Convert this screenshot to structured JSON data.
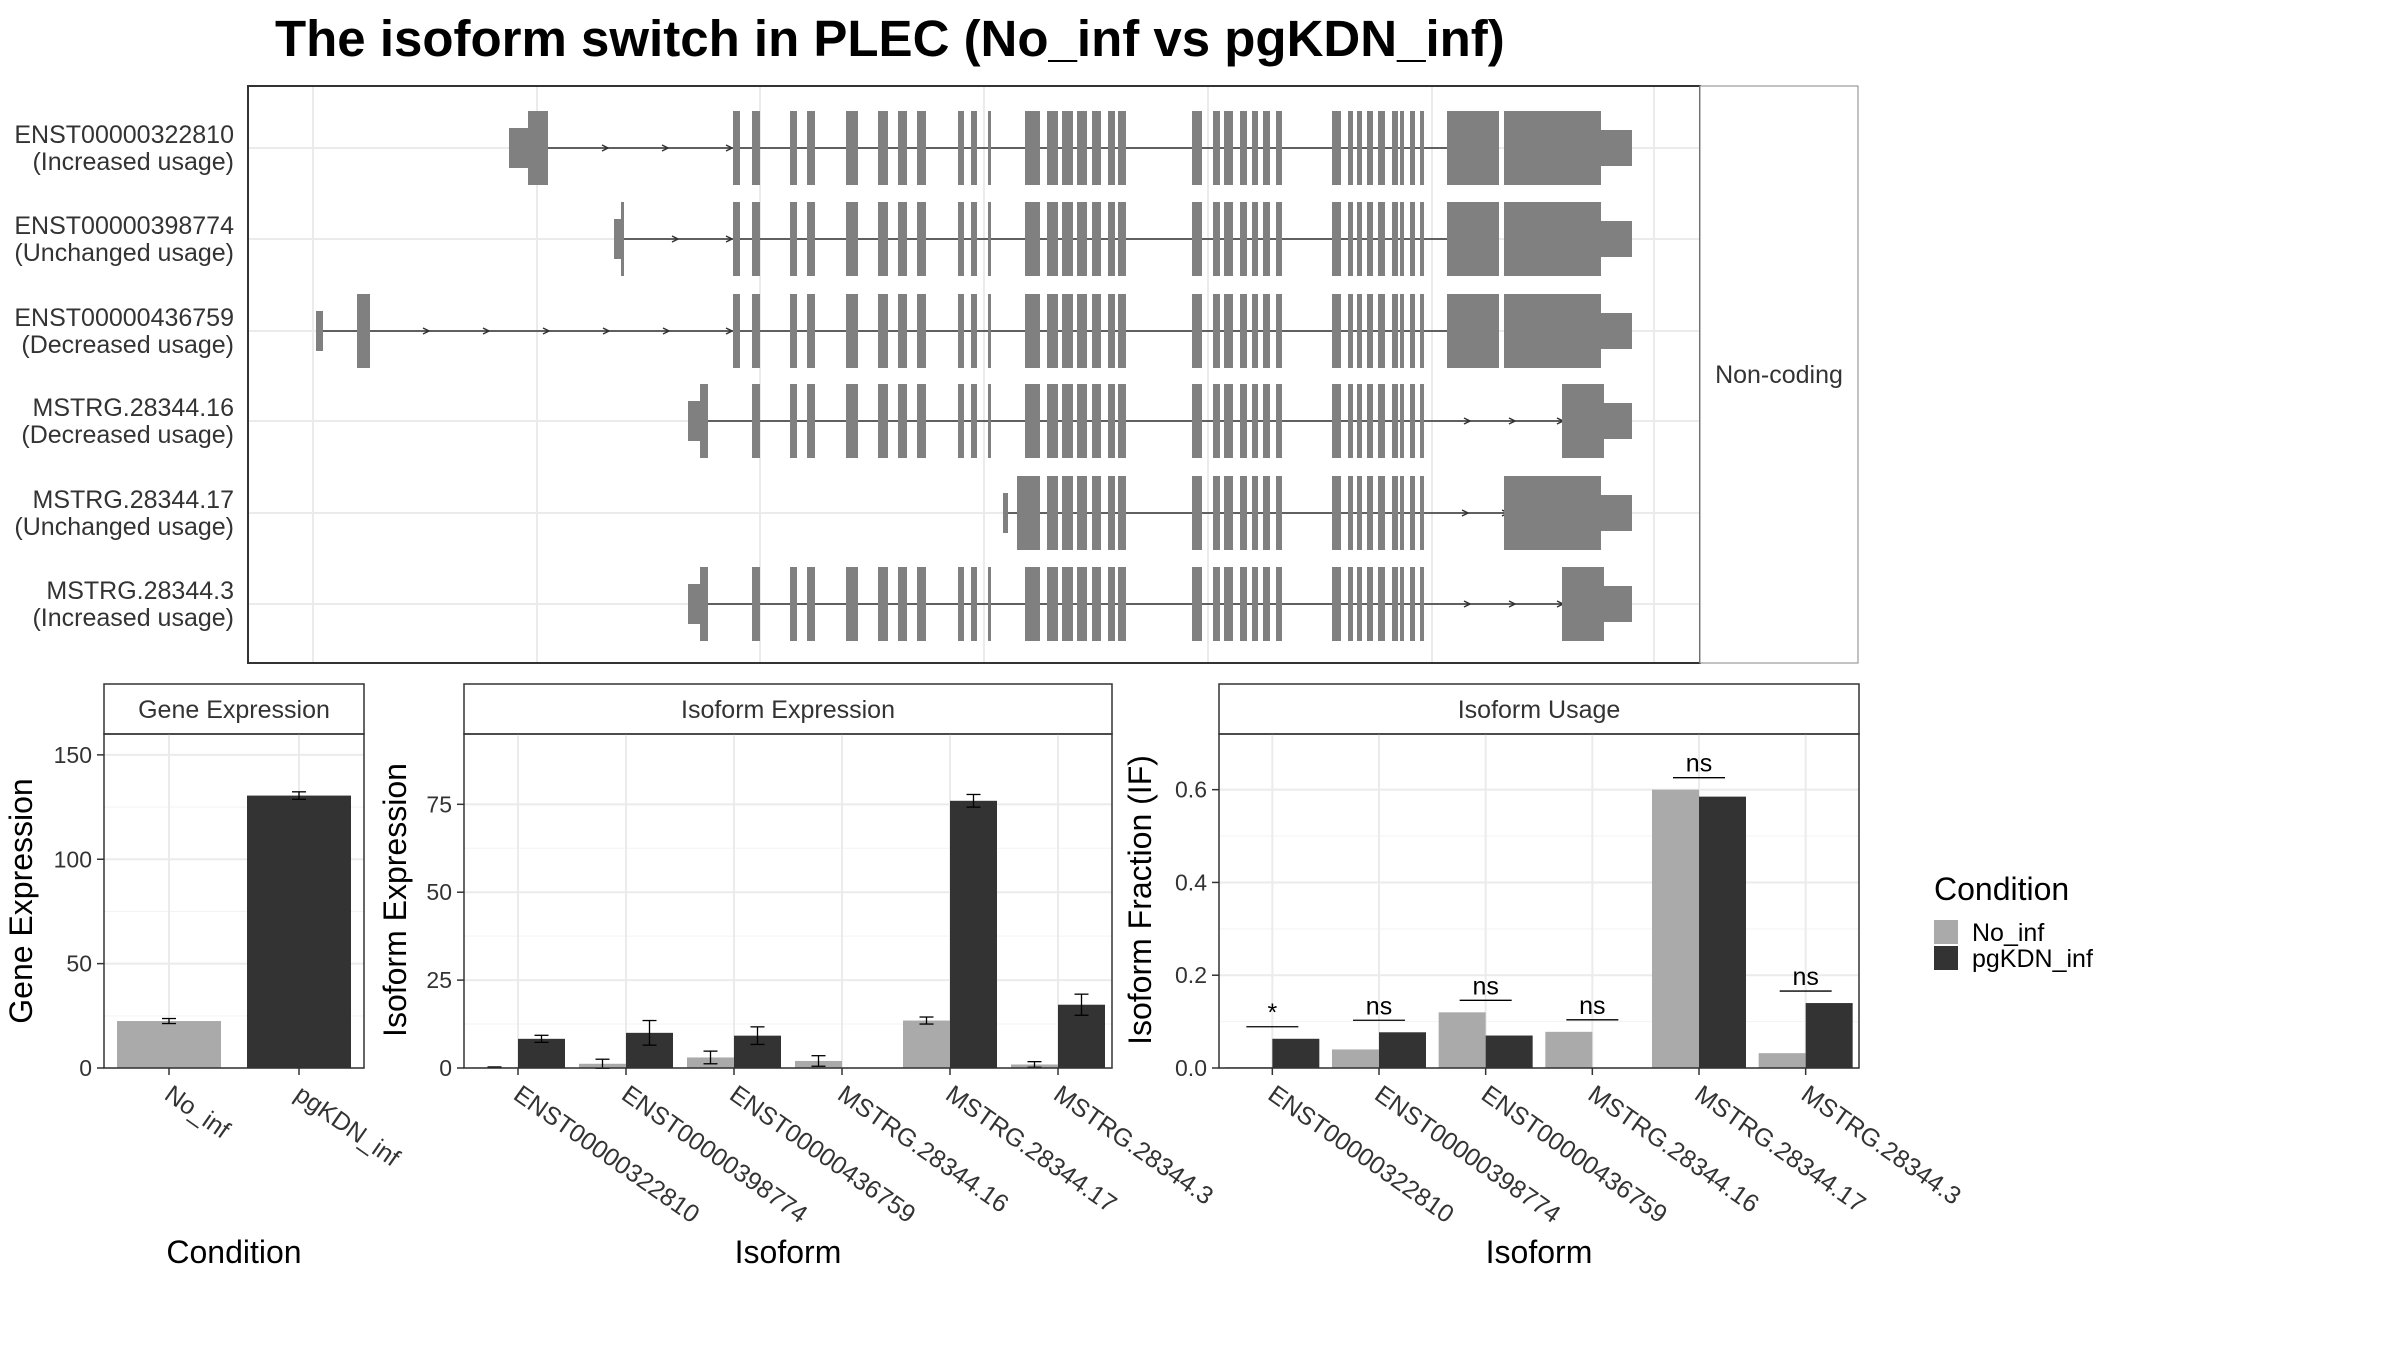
{
  "title": "The isoform switch in PLEC (No_inf vs pgKDN_inf)",
  "colors": {
    "no_inf": "#aaaaaa",
    "pgkdn_inf": "#333333",
    "exon": "#808080",
    "grid": "#ebebeb",
    "panel_border": "#333333"
  },
  "structure": {
    "strip_label": "Non-coding",
    "transcripts": [
      {
        "id": "ENST00000322810",
        "usage": "(Increased usage)"
      },
      {
        "id": "ENST00000398774",
        "usage": "(Unchanged usage)"
      },
      {
        "id": "ENST00000436759",
        "usage": "(Decreased usage)"
      },
      {
        "id": "MSTRG.28344.16",
        "usage": "(Decreased usage)"
      },
      {
        "id": "MSTRG.28344.17",
        "usage": "(Unchanged usage)"
      },
      {
        "id": "MSTRG.28344.3",
        "usage": "(Increased usage)"
      }
    ]
  },
  "legend": {
    "title": "Condition",
    "items": [
      "No_inf",
      "pgKDN_inf"
    ]
  },
  "chart_data": [
    {
      "type": "bar",
      "title": "Gene Expression",
      "xlabel": "Condition",
      "ylabel": "Gene Expression",
      "categories": [
        "No_inf",
        "pgKDN_inf"
      ],
      "values": [
        22.5,
        130.5
      ],
      "errors": [
        1.2,
        1.8
      ],
      "ylim": [
        0,
        160
      ],
      "yticks": [
        0,
        50,
        100,
        150
      ],
      "grid": true
    },
    {
      "type": "bar",
      "title": "Isoform Expression",
      "xlabel": "Isoform",
      "ylabel": "Isoform Expression",
      "categories": [
        "ENST00000322810",
        "ENST00000398774",
        "ENST00000436759",
        "MSTRG.28344.16",
        "MSTRG.28344.17",
        "MSTRG.28344.3"
      ],
      "series": [
        {
          "name": "No_inf",
          "values": [
            0.2,
            1.2,
            3.0,
            2.0,
            13.5,
            1.0
          ],
          "errors": [
            0.1,
            1.3,
            1.8,
            1.5,
            1.0,
            0.8
          ]
        },
        {
          "name": "pgKDN_inf",
          "values": [
            8.3,
            10.0,
            9.2,
            0.0,
            76.0,
            18.0
          ],
          "errors": [
            1.0,
            3.5,
            2.5,
            0.0,
            1.8,
            3.0
          ]
        }
      ],
      "ylim": [
        0,
        95
      ],
      "yticks": [
        0,
        25,
        50,
        75
      ],
      "grid": true
    },
    {
      "type": "bar",
      "title": "Isoform Usage",
      "xlabel": "Isoform",
      "ylabel": "Isoform Fraction (IF)",
      "categories": [
        "ENST00000322810",
        "ENST00000398774",
        "ENST00000436759",
        "MSTRG.28344.16",
        "MSTRG.28344.17",
        "MSTRG.28344.3"
      ],
      "series": [
        {
          "name": "No_inf",
          "values": [
            0.002,
            0.04,
            0.12,
            0.078,
            0.6,
            0.032
          ]
        },
        {
          "name": "pgKDN_inf",
          "values": [
            0.063,
            0.077,
            0.07,
            0.0,
            0.585,
            0.14
          ]
        }
      ],
      "significance": [
        "*",
        "ns",
        "ns",
        "ns",
        "ns",
        "ns"
      ],
      "ylim": [
        0,
        0.72
      ],
      "yticks": [
        0.0,
        0.2,
        0.4,
        0.6
      ],
      "grid": true
    }
  ]
}
